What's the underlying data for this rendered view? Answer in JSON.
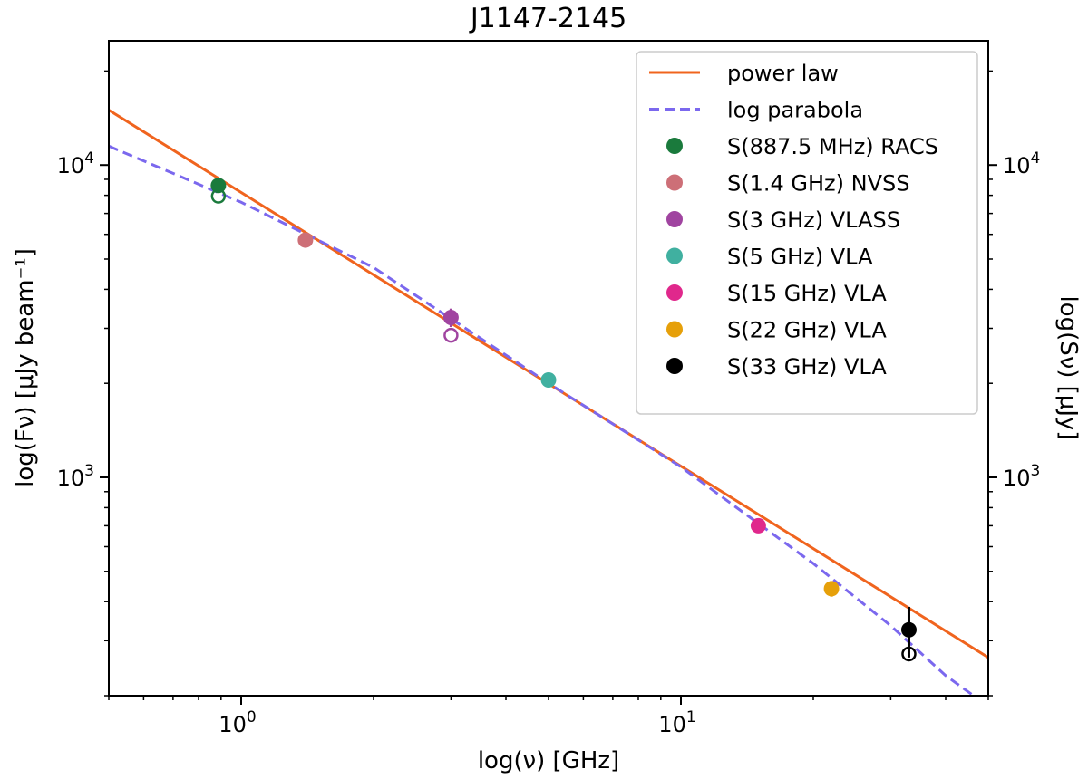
{
  "chart_data": {
    "type": "scatter",
    "title": "J1147-2145",
    "xlabel": "log(ν) [GHz]",
    "ylabel": "log(Fν) [μJy beam⁻¹]",
    "ylabel_right": "log(Sν) [μJy]",
    "xscale": "log",
    "yscale": "log",
    "xlim": [
      0.5,
      50
    ],
    "ylim": [
      200,
      25000
    ],
    "x_major_ticks": [
      1,
      10
    ],
    "x_major_tick_labels": [
      {
        "base": "10",
        "exp": "0"
      },
      {
        "base": "10",
        "exp": "1"
      }
    ],
    "y_major_ticks": [
      1000,
      10000
    ],
    "y_major_tick_labels": [
      {
        "base": "10",
        "exp": "3"
      },
      {
        "base": "10",
        "exp": "4"
      }
    ],
    "grid": false,
    "legend_position": "top-right",
    "lines": [
      {
        "name": "power law",
        "style": "solid",
        "color": "#f0641e",
        "x": [
          0.5,
          50
        ],
        "y": [
          15000,
          265
        ]
      },
      {
        "name": "log parabola",
        "style": "dashed",
        "color": "#7b68ee",
        "x": [
          0.5,
          1,
          2,
          5,
          10,
          20,
          30,
          40,
          50
        ],
        "y": [
          11500,
          7600,
          4700,
          2000,
          1080,
          530,
          335,
          232,
          185
        ]
      }
    ],
    "series": [
      {
        "name": "S(887.5 MHz) RACS",
        "color": "#1a7a3c",
        "x": 0.8875,
        "y": 8600,
        "y_open": 7950,
        "yerr": 0
      },
      {
        "name": "S(1.4 GHz) NVSS",
        "color": "#cd6f77",
        "x": 1.4,
        "y": 5750,
        "y_open": null,
        "yerr": 0
      },
      {
        "name": "S(3 GHz) VLASS",
        "color": "#a044a0",
        "x": 3.0,
        "y": 3250,
        "y_open": 2850,
        "yerr": 220
      },
      {
        "name": "S(5 GHz) VLA",
        "color": "#40b0a0",
        "x": 5.0,
        "y": 2050,
        "y_open": null,
        "yerr": 0
      },
      {
        "name": "S(15 GHz) VLA",
        "color": "#e0288c",
        "x": 15.0,
        "y": 700,
        "y_open": null,
        "yerr": 0
      },
      {
        "name": "S(22 GHz) VLA",
        "color": "#e6a00a",
        "x": 22.0,
        "y": 440,
        "y_open": null,
        "yerr": 25
      },
      {
        "name": "S(33 GHz) VLA",
        "color": "#000000",
        "x": 33.0,
        "y": 325,
        "y_open": 272,
        "yerr": 60
      }
    ]
  }
}
